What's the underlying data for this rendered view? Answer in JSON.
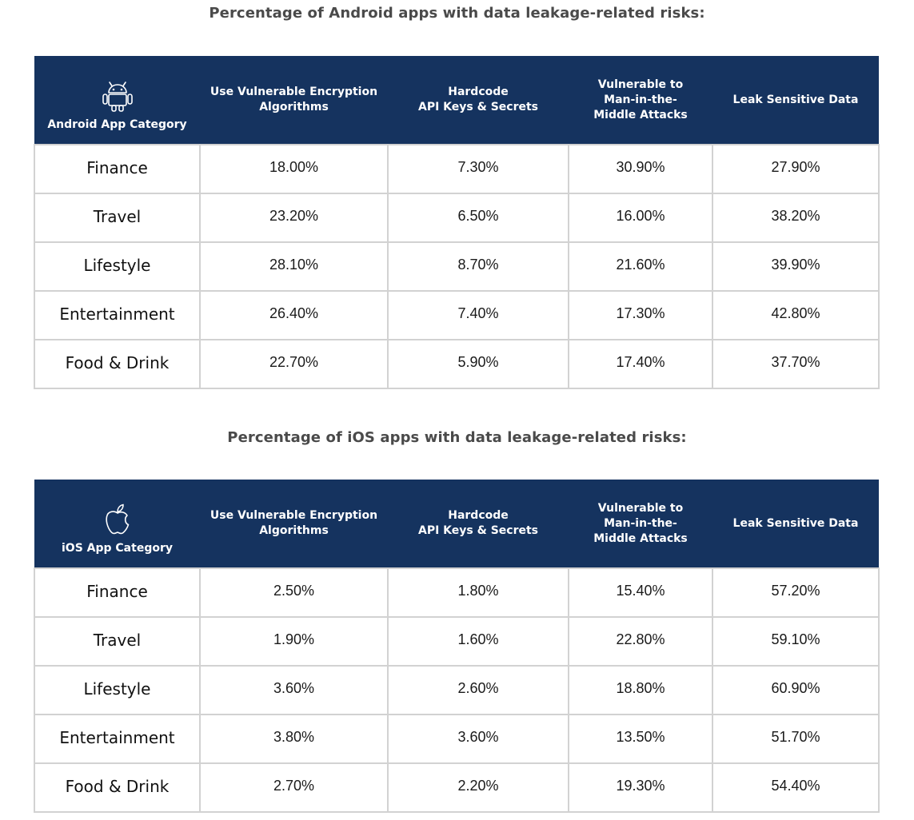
{
  "android": {
    "title": "Percentage of Android apps with data leakage-related risks:",
    "icon": "android-icon",
    "headers": {
      "category": "Android App Category",
      "encryption": [
        "Use Vulnerable Encryption",
        "Algorithms"
      ],
      "hardcode": [
        "Hardcode",
        "API Keys & Secrets"
      ],
      "mitm": [
        "Vulnerable to",
        "Man-in-the-",
        "Middle Attacks"
      ],
      "leak": "Leak Sensitive Data"
    },
    "rows": [
      {
        "category": "Finance",
        "encryption": "18.00%",
        "hardcode": "7.30%",
        "mitm": "30.90%",
        "leak": "27.90%"
      },
      {
        "category": "Travel",
        "encryption": "23.20%",
        "hardcode": "6.50%",
        "mitm": "16.00%",
        "leak": "38.20%"
      },
      {
        "category": "Lifestyle",
        "encryption": "28.10%",
        "hardcode": "8.70%",
        "mitm": "21.60%",
        "leak": "39.90%"
      },
      {
        "category": "Entertainment",
        "encryption": "26.40%",
        "hardcode": "7.40%",
        "mitm": "17.30%",
        "leak": "42.80%"
      },
      {
        "category": "Food & Drink",
        "encryption": "22.70%",
        "hardcode": "5.90%",
        "mitm": "17.40%",
        "leak": "37.70%"
      }
    ]
  },
  "ios": {
    "title": "Percentage of iOS apps with data leakage-related risks:",
    "icon": "apple-icon",
    "headers": {
      "category": "iOS App Category",
      "encryption": [
        "Use Vulnerable Encryption",
        "Algorithms"
      ],
      "hardcode": [
        "Hardcode",
        "API Keys & Secrets"
      ],
      "mitm": [
        "Vulnerable to",
        "Man-in-the-",
        "Middle Attacks"
      ],
      "leak": "Leak Sensitive Data"
    },
    "rows": [
      {
        "category": "Finance",
        "encryption": "2.50%",
        "hardcode": "1.80%",
        "mitm": "15.40%",
        "leak": "57.20%"
      },
      {
        "category": "Travel",
        "encryption": "1.90%",
        "hardcode": "1.60%",
        "mitm": "22.80%",
        "leak": "59.10%"
      },
      {
        "category": "Lifestyle",
        "encryption": "3.60%",
        "hardcode": "2.60%",
        "mitm": "18.80%",
        "leak": "60.90%"
      },
      {
        "category": "Entertainment",
        "encryption": "3.80%",
        "hardcode": "3.60%",
        "mitm": "13.50%",
        "leak": "51.70%"
      },
      {
        "category": "Food & Drink",
        "encryption": "2.70%",
        "hardcode": "2.20%",
        "mitm": "19.30%",
        "leak": "54.40%"
      }
    ]
  },
  "colors": {
    "header_bg": "#15335f",
    "title_text": "#4a4a4a",
    "grid": "#d2d2d2"
  }
}
